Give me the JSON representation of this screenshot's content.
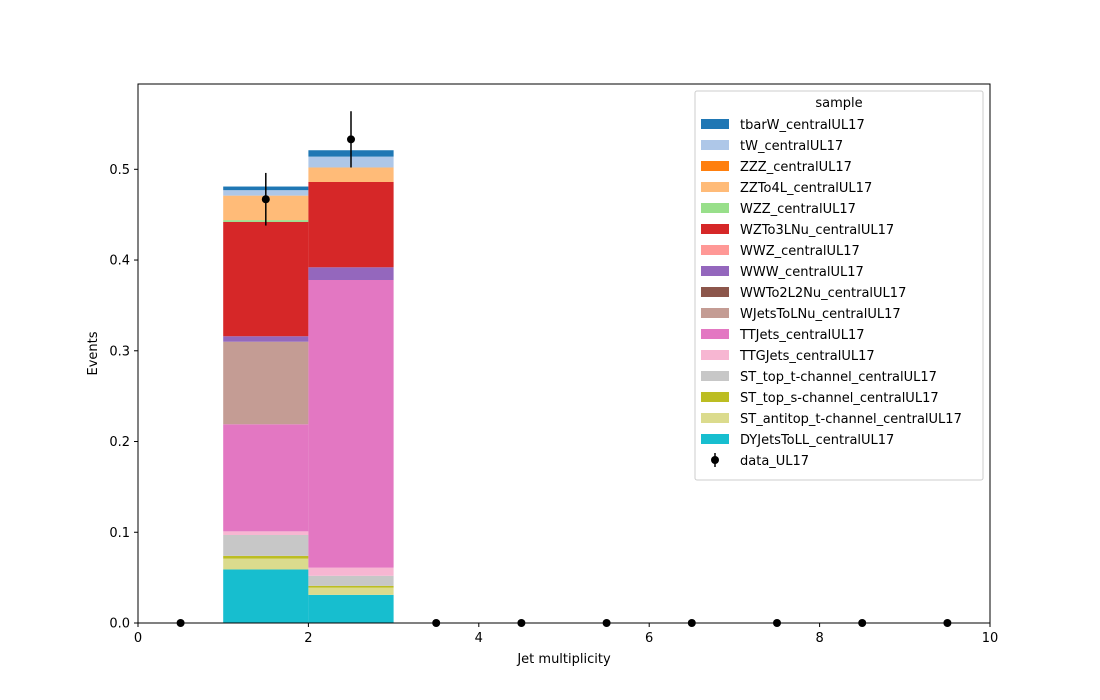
{
  "chart_data": {
    "type": "bar",
    "stacked": true,
    "title": "",
    "xlabel": "Jet multiplicity",
    "ylabel": "Events",
    "xlim": [
      0,
      10
    ],
    "ylim": [
      0,
      0.594
    ],
    "xticks": [
      0,
      2,
      4,
      6,
      8,
      10
    ],
    "yticks": [
      0.0,
      0.1,
      0.2,
      0.3,
      0.4,
      0.5
    ],
    "bin_edges": [
      0,
      1,
      2,
      3,
      4,
      5,
      6,
      7,
      8,
      9,
      10
    ],
    "grid": false,
    "legend": {
      "title": "sample",
      "placement": "top-right"
    },
    "series": [
      {
        "name": "DYJetsToLL_centralUL17",
        "color": "#17becf",
        "values": [
          0,
          0.059,
          0.031,
          0,
          0,
          0,
          0,
          0,
          0,
          0
        ]
      },
      {
        "name": "ST_antitop_t-channel_centralUL17",
        "color": "#dbdb8d",
        "values": [
          0,
          0.012,
          0.008,
          0,
          0,
          0,
          0,
          0,
          0,
          0
        ]
      },
      {
        "name": "ST_top_s-channel_centralUL17",
        "color": "#bcbd22",
        "values": [
          0,
          0.003,
          0.002,
          0,
          0,
          0,
          0,
          0,
          0,
          0
        ]
      },
      {
        "name": "ST_top_t-channel_centralUL17",
        "color": "#c7c7c7",
        "values": [
          0,
          0.023,
          0.011,
          0,
          0,
          0,
          0,
          0,
          0,
          0
        ]
      },
      {
        "name": "TTGJets_centralUL17",
        "color": "#f7b6d2",
        "values": [
          0,
          0.004,
          0.009,
          0,
          0,
          0,
          0,
          0,
          0,
          0
        ]
      },
      {
        "name": "TTJets_centralUL17",
        "color": "#e377c2",
        "values": [
          0,
          0.118,
          0.317,
          0,
          0,
          0,
          0,
          0,
          0,
          0
        ]
      },
      {
        "name": "WJetsToLNu_centralUL17",
        "color": "#c49c94",
        "values": [
          0,
          0.091,
          0,
          0,
          0,
          0,
          0,
          0,
          0,
          0
        ]
      },
      {
        "name": "WWTo2L2Nu_centralUL17",
        "color": "#8c564b",
        "values": [
          0,
          0,
          0,
          0,
          0,
          0,
          0,
          0,
          0,
          0
        ]
      },
      {
        "name": "WWW_centralUL17",
        "color": "#9467bd",
        "values": [
          0,
          0.006,
          0.014,
          0,
          0,
          0,
          0,
          0,
          0,
          0
        ]
      },
      {
        "name": "WWZ_centralUL17",
        "color": "#ff9896",
        "values": [
          0,
          0,
          0,
          0,
          0,
          0,
          0,
          0,
          0,
          0
        ]
      },
      {
        "name": "WZTo3LNu_centralUL17",
        "color": "#d62728",
        "values": [
          0,
          0.126,
          0.094,
          0,
          0,
          0,
          0,
          0,
          0,
          0
        ]
      },
      {
        "name": "WZZ_centralUL17",
        "color": "#98df8a",
        "values": [
          0,
          0.002,
          0,
          0,
          0,
          0,
          0,
          0,
          0,
          0
        ]
      },
      {
        "name": "ZZTo4L_centralUL17",
        "color": "#ffbb78",
        "values": [
          0,
          0.027,
          0.016,
          0,
          0,
          0,
          0,
          0,
          0,
          0
        ]
      },
      {
        "name": "ZZZ_centralUL17",
        "color": "#ff7f0e",
        "values": [
          0,
          0,
          0,
          0,
          0,
          0,
          0,
          0,
          0,
          0
        ]
      },
      {
        "name": "tW_centralUL17",
        "color": "#aec7e8",
        "values": [
          0,
          0.006,
          0.012,
          0,
          0,
          0,
          0,
          0,
          0,
          0
        ]
      },
      {
        "name": "tbarW_centralUL17",
        "color": "#1f77b4",
        "values": [
          0,
          0.004,
          0.007,
          0,
          0,
          0,
          0,
          0,
          0,
          0
        ]
      }
    ],
    "data": {
      "name": "data_UL17",
      "color": "#000000",
      "x": [
        0.5,
        1.5,
        2.5,
        3.5,
        4.5,
        5.5,
        6.5,
        7.5,
        8.5,
        9.5
      ],
      "y": [
        0,
        0.467,
        0.533,
        0,
        0,
        0,
        0,
        0,
        0,
        0
      ],
      "yerr": [
        0,
        0.029,
        0.031,
        0,
        0,
        0,
        0,
        0,
        0,
        0
      ]
    }
  }
}
